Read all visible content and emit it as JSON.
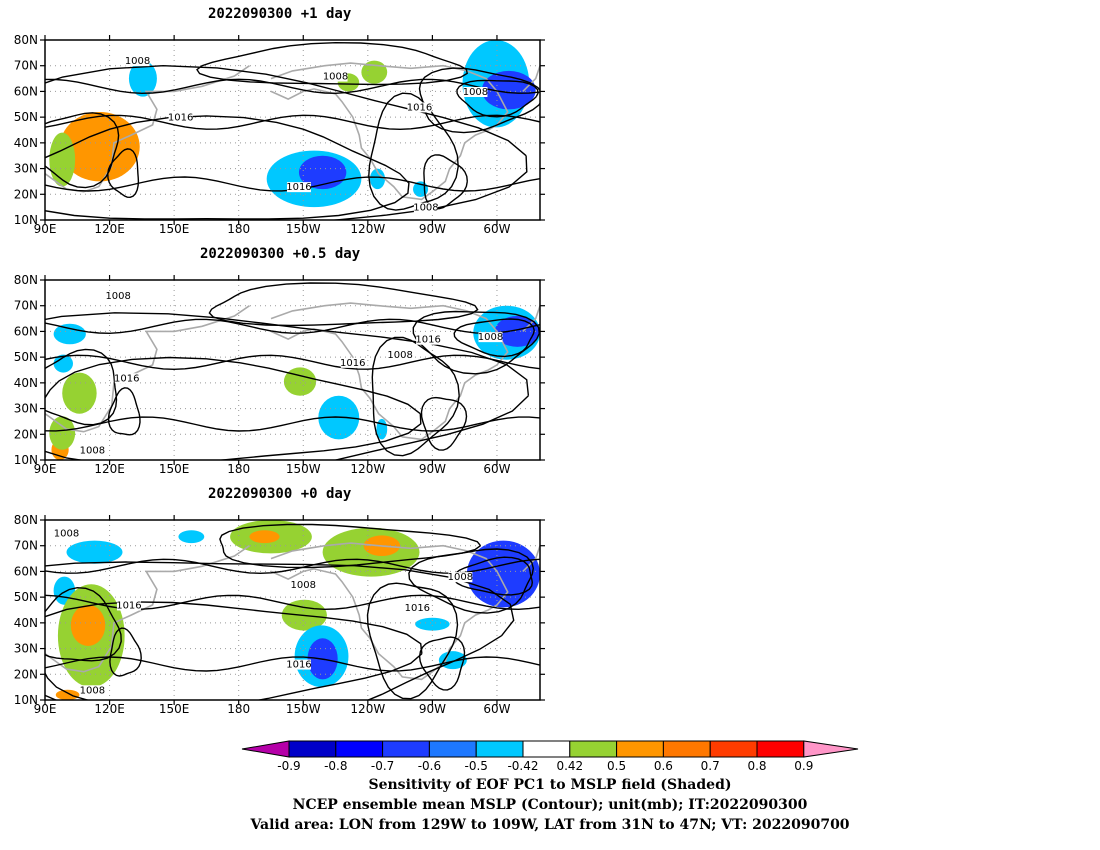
{
  "panels": [
    {
      "title": "2022090300  +1 day"
    },
    {
      "title": "2022090300  +0.5 day"
    },
    {
      "title": "2022090300  +0 day"
    }
  ],
  "axes": {
    "lon_ticks": [
      "90E",
      "120E",
      "150E",
      "180",
      "150W",
      "120W",
      "90W",
      "60W"
    ],
    "lat_ticks": [
      "80N",
      "70N",
      "60N",
      "50N",
      "40N",
      "30N",
      "20N",
      "10N"
    ],
    "lon_range": [
      90,
      320
    ],
    "lat_range": [
      10,
      80
    ]
  },
  "contour_labels": [
    "1008",
    "1016"
  ],
  "panel_labels": [
    [
      {
        "t": "1008",
        "lon": 133,
        "lat": 71
      },
      {
        "t": "1008",
        "lon": 225,
        "lat": 65
      },
      {
        "t": "1008",
        "lon": 290,
        "lat": 59
      },
      {
        "t": "1016",
        "lon": 153,
        "lat": 49
      },
      {
        "t": "1016",
        "lon": 264,
        "lat": 53
      },
      {
        "t": "1016",
        "lon": 208,
        "lat": 22
      },
      {
        "t": "1008",
        "lon": 267,
        "lat": 14
      }
    ],
    [
      {
        "t": "1008",
        "lon": 124,
        "lat": 73
      },
      {
        "t": "1016",
        "lon": 128,
        "lat": 41
      },
      {
        "t": "1016",
        "lon": 233,
        "lat": 47
      },
      {
        "t": "1008",
        "lon": 255,
        "lat": 50
      },
      {
        "t": "1016",
        "lon": 268,
        "lat": 56
      },
      {
        "t": "1008",
        "lon": 297,
        "lat": 57
      },
      {
        "t": "1008",
        "lon": 112,
        "lat": 13
      }
    ],
    [
      {
        "t": "1008",
        "lon": 100,
        "lat": 74
      },
      {
        "t": "1016",
        "lon": 129,
        "lat": 46
      },
      {
        "t": "1008",
        "lon": 210,
        "lat": 54
      },
      {
        "t": "1016",
        "lon": 263,
        "lat": 45
      },
      {
        "t": "1008",
        "lon": 283,
        "lat": 57
      },
      {
        "t": "1016",
        "lon": 208,
        "lat": 23
      },
      {
        "t": "1008",
        "lon": 112,
        "lat": 13
      }
    ]
  ],
  "colorbar": {
    "tick_labels": [
      "-0.9",
      "-0.8",
      "-0.7",
      "-0.6",
      "-0.5",
      "-0.42",
      "0.42",
      "0.5",
      "0.6",
      "0.7",
      "0.8",
      "0.9"
    ],
    "colors": [
      "#b500a8",
      "#0000c8",
      "#0000ff",
      "#1e3cff",
      "#1e78ff",
      "#00c8ff",
      "#ffffff",
      "#96d232",
      "#ff9600",
      "#ff7800",
      "#ff3c00",
      "#ff0000",
      "#ff96c8"
    ]
  },
  "footer": {
    "line1": "Sensitivity of EOF PC1 to MSLP field (Shaded)",
    "line2": "NCEP ensemble mean MSLP (Contour); unit(mb); IT:2022090300",
    "line3": "Valid area: LON from 129W to 109W, LAT from 31N to 47N; VT: 2022090700"
  },
  "shading": [
    [
      {
        "c": "#00c8ff",
        "lon": [
          129,
          142
        ],
        "lat": [
          58,
          72
        ]
      },
      {
        "c": "#00c8ff",
        "lon": [
          284,
          315
        ],
        "lat": [
          46,
          80
        ]
      },
      {
        "c": "#1e3cff",
        "lon": [
          293,
          318
        ],
        "lat": [
          53,
          68
        ]
      },
      {
        "c": "#00c8ff",
        "lon": [
          193,
          237
        ],
        "lat": [
          15,
          37
        ]
      },
      {
        "c": "#1e3cff",
        "lon": [
          208,
          230
        ],
        "lat": [
          22,
          35
        ]
      },
      {
        "c": "#ff9600",
        "lon": [
          97,
          134
        ],
        "lat": [
          25,
          52
        ]
      },
      {
        "c": "#96d232",
        "lon": [
          92,
          104
        ],
        "lat": [
          23,
          44
        ]
      },
      {
        "c": "#96d232",
        "lon": [
          226,
          236
        ],
        "lat": [
          60,
          67
        ]
      },
      {
        "c": "#96d232",
        "lon": [
          237,
          249
        ],
        "lat": [
          63,
          72
        ]
      },
      {
        "c": "#00c8ff",
        "lon": [
          241,
          248
        ],
        "lat": [
          22,
          30
        ]
      },
      {
        "c": "#00c8ff",
        "lon": [
          261,
          268
        ],
        "lat": [
          19,
          25
        ]
      }
    ],
    [
      {
        "c": "#00c8ff",
        "lon": [
          94,
          109
        ],
        "lat": [
          55,
          63
        ]
      },
      {
        "c": "#00c8ff",
        "lon": [
          94,
          103
        ],
        "lat": [
          44,
          51
        ]
      },
      {
        "c": "#00c8ff",
        "lon": [
          289,
          320
        ],
        "lat": [
          49,
          70
        ]
      },
      {
        "c": "#1e3cff",
        "lon": [
          299,
          320
        ],
        "lat": [
          54,
          66
        ]
      },
      {
        "c": "#96d232",
        "lon": [
          201,
          216
        ],
        "lat": [
          35,
          46
        ]
      },
      {
        "c": "#00c8ff",
        "lon": [
          217,
          236
        ],
        "lat": [
          18,
          35
        ]
      },
      {
        "c": "#96d232",
        "lon": [
          98,
          114
        ],
        "lat": [
          28,
          44
        ]
      },
      {
        "c": "#ff9600",
        "lon": [
          93,
          101
        ],
        "lat": [
          10,
          18
        ]
      },
      {
        "c": "#96d232",
        "lon": [
          92,
          104
        ],
        "lat": [
          14,
          27
        ]
      },
      {
        "c": "#00c8ff",
        "lon": [
          244,
          249
        ],
        "lat": [
          18,
          26
        ]
      }
    ],
    [
      {
        "c": "#00c8ff",
        "lon": [
          100,
          126
        ],
        "lat": [
          63,
          72
        ]
      },
      {
        "c": "#00c8ff",
        "lon": [
          152,
          164
        ],
        "lat": [
          71,
          76
        ]
      },
      {
        "c": "#96d232",
        "lon": [
          176,
          214
        ],
        "lat": [
          67,
          80
        ]
      },
      {
        "c": "#ff9600",
        "lon": [
          185,
          199
        ],
        "lat": [
          71,
          76
        ]
      },
      {
        "c": "#96d232",
        "lon": [
          219,
          264
        ],
        "lat": [
          58,
          77
        ]
      },
      {
        "c": "#ff9600",
        "lon": [
          238,
          255
        ],
        "lat": [
          66,
          74
        ]
      },
      {
        "c": "#1e3cff",
        "lon": [
          286,
          320
        ],
        "lat": [
          46,
          72
        ]
      },
      {
        "c": "#00c8ff",
        "lon": [
          94,
          104
        ],
        "lat": [
          47,
          58
        ]
      },
      {
        "c": "#96d232",
        "lon": [
          96,
          127
        ],
        "lat": [
          15,
          55
        ]
      },
      {
        "c": "#ff9600",
        "lon": [
          102,
          118
        ],
        "lat": [
          31,
          47
        ]
      },
      {
        "c": "#ff9600",
        "lon": [
          95,
          106
        ],
        "lat": [
          10,
          14
        ]
      },
      {
        "c": "#96d232",
        "lon": [
          200,
          221
        ],
        "lat": [
          37,
          49
        ]
      },
      {
        "c": "#00c8ff",
        "lon": [
          206,
          231
        ],
        "lat": [
          15,
          39
        ]
      },
      {
        "c": "#1e3cff",
        "lon": [
          212,
          226
        ],
        "lat": [
          18,
          34
        ]
      },
      {
        "c": "#00c8ff",
        "lon": [
          262,
          278
        ],
        "lat": [
          37,
          42
        ]
      },
      {
        "c": "#00c8ff",
        "lon": [
          273,
          286
        ],
        "lat": [
          22,
          29
        ]
      }
    ]
  ]
}
